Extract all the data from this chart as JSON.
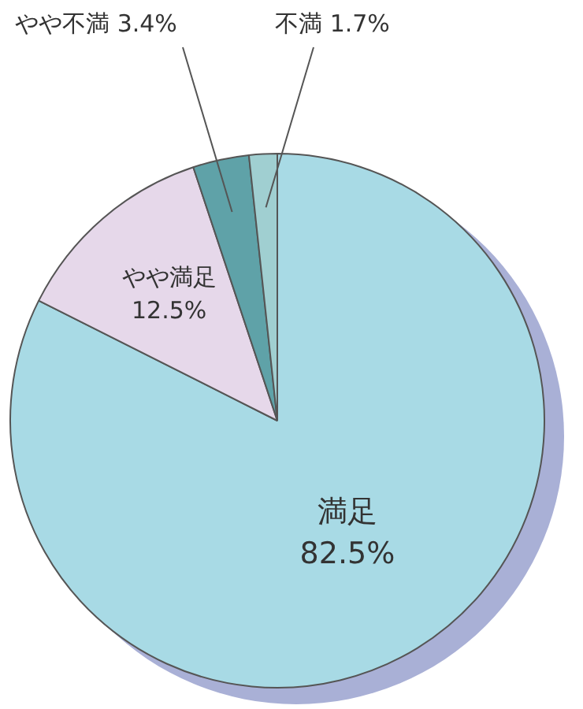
{
  "chart_data": {
    "type": "pie",
    "categories": [
      "満足",
      "やや満足",
      "やや不満",
      "不満"
    ],
    "values": [
      82.5,
      12.5,
      3.4,
      1.7
    ],
    "colors": [
      "#a8dae5",
      "#e6d8ea",
      "#5fa2a8",
      "#a0cfd1"
    ],
    "value_labels": [
      "82.5%",
      "12.5%",
      "3.4%",
      "1.7%"
    ],
    "legend": false
  }
}
